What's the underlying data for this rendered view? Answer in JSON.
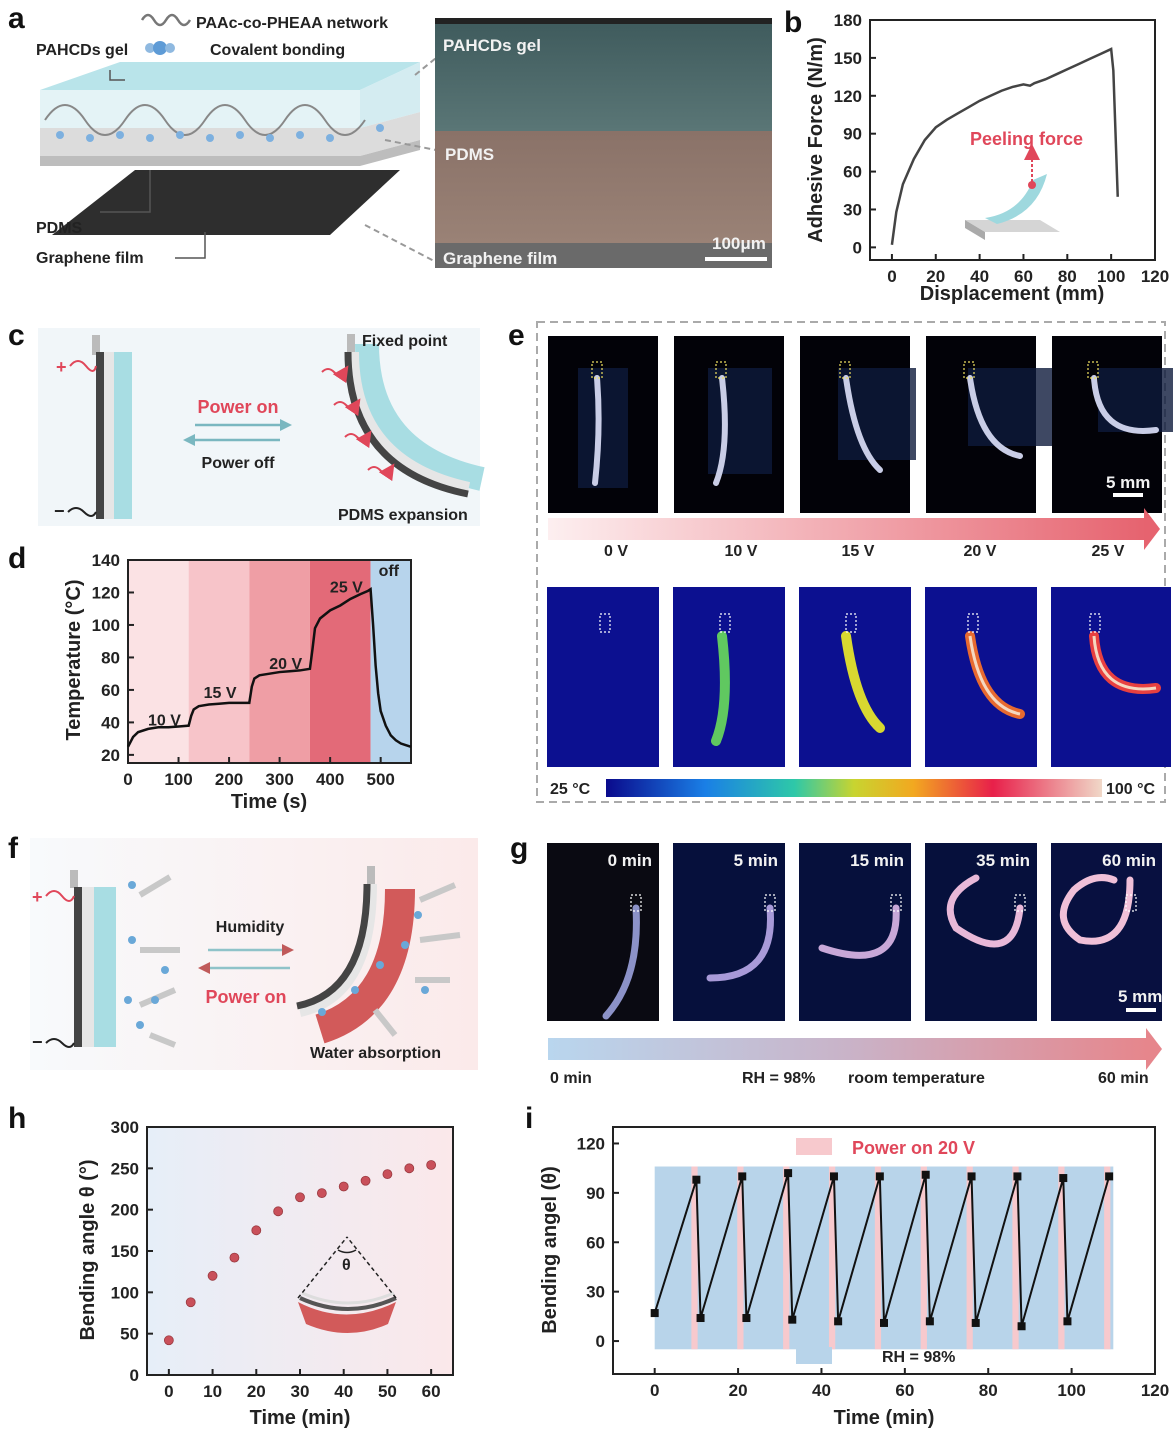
{
  "panels": {
    "a": {
      "label": "a",
      "legend_network": "PAAc-co-PHEAA network",
      "legend_bonding": "Covalent bonding",
      "layer_gel": "PAHCDs gel",
      "layer_pdms": "PDMS",
      "layer_graphene": "Graphene film",
      "sem_gel": "PAHCDs gel",
      "sem_pdms": "PDMS",
      "sem_graphene": "Graphene film",
      "scale": "100μm"
    },
    "c": {
      "label": "c",
      "fixed_point": "Fixed point",
      "power_on": "Power on",
      "power_off": "Power off",
      "expansion": "PDMS expansion",
      "plus": "+",
      "minus": "−"
    },
    "e": {
      "label": "e",
      "voltages": [
        "0 V",
        "10 V",
        "15 V",
        "20 V",
        "25 V"
      ],
      "scale": "5 mm",
      "cbar_min": "25 °C",
      "cbar_max": "100 °C"
    },
    "f": {
      "label": "f",
      "humidity": "Humidity",
      "power_on": "Power on",
      "water": "Water absorption",
      "plus": "+",
      "minus": "−"
    },
    "g": {
      "label": "g",
      "times": [
        "0 min",
        "5 min",
        "15 min",
        "35 min",
        "60 min"
      ],
      "scale": "5 mm",
      "bar_start": "0 min",
      "bar_mid1": "RH = 98%",
      "bar_mid2": "room temperature",
      "bar_end": "60 min"
    }
  },
  "colors": {
    "gel": "#a8dde3",
    "pdms": "#e8e8e8",
    "graphene": "#3a3a3a",
    "accent_red": "#e0475a",
    "hydrogel_red": "#d25a5a",
    "rh_blue": "#b8d4ea"
  },
  "chart_data": [
    {
      "id": "b",
      "label": "b",
      "type": "line",
      "xlabel": "Displacement (mm)",
      "ylabel": "Adhesive Force (N/m)",
      "xlim": [
        -10,
        120
      ],
      "ylim": [
        -10,
        180
      ],
      "xticks": [
        0,
        20,
        40,
        60,
        80,
        100,
        120
      ],
      "yticks": [
        0,
        30,
        60,
        90,
        120,
        150,
        180
      ],
      "annotation": "Peeling force",
      "x": [
        0,
        2,
        5,
        10,
        15,
        20,
        25,
        30,
        35,
        40,
        45,
        50,
        55,
        60,
        63,
        65,
        70,
        75,
        80,
        85,
        90,
        95,
        100,
        101,
        103
      ],
      "y": [
        2,
        28,
        50,
        70,
        85,
        95,
        101,
        106,
        111,
        116,
        120,
        124,
        127,
        129,
        128,
        130,
        133,
        137,
        141,
        145,
        149,
        153,
        157,
        140,
        40
      ]
    },
    {
      "id": "d",
      "label": "d",
      "type": "line",
      "xlabel": "Time (s)",
      "ylabel": "Temperature (°C)",
      "xlim": [
        0,
        560
      ],
      "ylim": [
        15,
        140
      ],
      "xticks": [
        0,
        100,
        200,
        300,
        400,
        500
      ],
      "yticks": [
        20,
        40,
        60,
        80,
        100,
        120,
        140
      ],
      "regions": [
        {
          "x0": 0,
          "x1": 120,
          "label": "10 V",
          "color": "#fbe2e4"
        },
        {
          "x0": 120,
          "x1": 240,
          "label": "15 V",
          "color": "#f7c4c9"
        },
        {
          "x0": 240,
          "x1": 360,
          "label": "20 V",
          "color": "#ef9ea5"
        },
        {
          "x0": 360,
          "x1": 480,
          "label": "25 V",
          "color": "#e36a78"
        },
        {
          "x0": 480,
          "x1": 560,
          "label": "off",
          "color": "#b7d4ec"
        }
      ],
      "x": [
        0,
        5,
        10,
        20,
        40,
        60,
        80,
        100,
        120,
        125,
        130,
        140,
        160,
        180,
        200,
        220,
        240,
        245,
        250,
        260,
        280,
        300,
        320,
        340,
        360,
        365,
        370,
        380,
        400,
        420,
        440,
        460,
        475,
        480,
        485,
        490,
        495,
        500,
        510,
        520,
        530,
        540,
        550,
        560
      ],
      "y": [
        25,
        28,
        31,
        34,
        36,
        37,
        37,
        37.5,
        38,
        44,
        48,
        50,
        51,
        51.5,
        52,
        52,
        52,
        62,
        67,
        69,
        70,
        71,
        71.5,
        72,
        73,
        85,
        98,
        104,
        109,
        112,
        116,
        119,
        121,
        122,
        100,
        75,
        58,
        47,
        38,
        32,
        29,
        27,
        26,
        25
      ]
    },
    {
      "id": "h",
      "label": "h",
      "type": "scatter",
      "xlabel": "Time (min)",
      "ylabel": "Bending angle θ (°)",
      "annotation": "θ",
      "xlim": [
        -5,
        65
      ],
      "ylim": [
        0,
        300
      ],
      "xticks": [
        0,
        10,
        20,
        30,
        40,
        50,
        60
      ],
      "yticks": [
        0,
        50,
        100,
        150,
        200,
        250,
        300
      ],
      "x": [
        0,
        5,
        10,
        15,
        20,
        25,
        30,
        35,
        40,
        45,
        50,
        55,
        60
      ],
      "y": [
        42,
        88,
        120,
        142,
        175,
        198,
        215,
        220,
        228,
        235,
        243,
        250,
        254
      ]
    },
    {
      "id": "i",
      "label": "i",
      "type": "line",
      "xlabel": "Time (min)",
      "ylabel": "Bending angel (θ)",
      "xlim": [
        -10,
        120
      ],
      "ylim": [
        -20,
        130
      ],
      "xticks": [
        0,
        20,
        40,
        60,
        80,
        100,
        120
      ],
      "yticks": [
        0,
        30,
        60,
        90,
        120
      ],
      "legend": [
        {
          "label": "Power on 20 V",
          "color": "#f7c9cd"
        },
        {
          "label": "RH = 98%",
          "color": "#b8d4ea"
        }
      ],
      "x": [
        0,
        10,
        11,
        21,
        22,
        32,
        33,
        43,
        44,
        54,
        55,
        65,
        66,
        76,
        77,
        87,
        88,
        98,
        99,
        109
      ],
      "y": [
        17,
        98,
        14,
        100,
        14,
        102,
        13,
        100,
        12,
        100,
        11,
        101,
        12,
        100,
        11,
        100,
        9,
        99,
        12,
        100
      ]
    }
  ]
}
